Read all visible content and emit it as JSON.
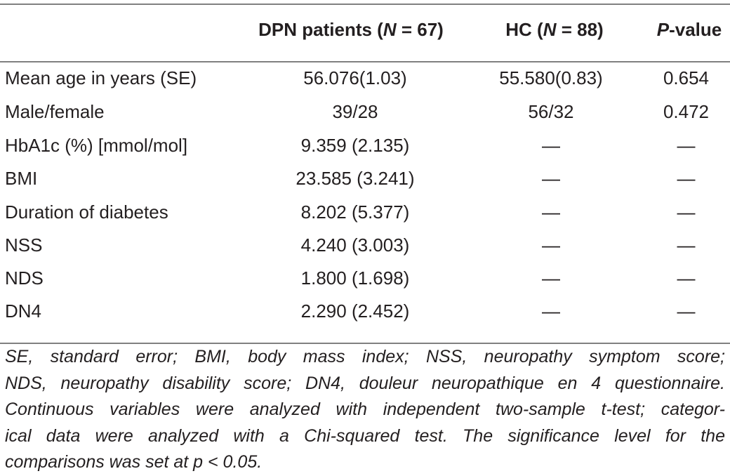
{
  "table": {
    "headers": {
      "variable": "",
      "dpn_prefix": "DPN patients (",
      "dpn_n": "N",
      "dpn_suffix": " = 67)",
      "hc_prefix": "HC (",
      "hc_n": "N",
      "hc_suffix": " = 88)",
      "p_prefix": "P",
      "p_suffix": "-value"
    },
    "rows": [
      {
        "variable": "Mean age in years (SE)",
        "dpn": "56.076(1.03)",
        "hc": "55.580(0.83)",
        "p": "0.654"
      },
      {
        "variable": "Male/female",
        "dpn": "39/28",
        "hc": "56/32",
        "p": "0.472"
      },
      {
        "variable": "HbA1c (%) [mmol/mol]",
        "dpn": "9.359 (2.135)",
        "hc": "—",
        "p": "—"
      },
      {
        "variable": "BMI",
        "dpn": "23.585 (3.241)",
        "hc": "—",
        "p": "—"
      },
      {
        "variable": "Duration of diabetes",
        "dpn": "8.202 (5.377)",
        "hc": "—",
        "p": "—"
      },
      {
        "variable": "NSS",
        "dpn": "4.240 (3.003)",
        "hc": "—",
        "p": "—"
      },
      {
        "variable": "NDS",
        "dpn": "1.800 (1.698)",
        "hc": "—",
        "p": "—"
      },
      {
        "variable": "DN4",
        "dpn": "2.290 (2.452)",
        "hc": "—",
        "p": "—"
      }
    ]
  },
  "footnote": {
    "lines": [
      "SE, standard error; BMI, body mass index; NSS, neuropathy symptom score;",
      "NDS, neuropathy disability score; DN4, douleur neuropathique en 4 questionnaire.",
      "Continuous variables were analyzed with independent two-sample t-test; categor-",
      "ical data were analyzed with a Chi-squared test. The significance level for the",
      "comparisons was set at p < 0.05."
    ]
  }
}
